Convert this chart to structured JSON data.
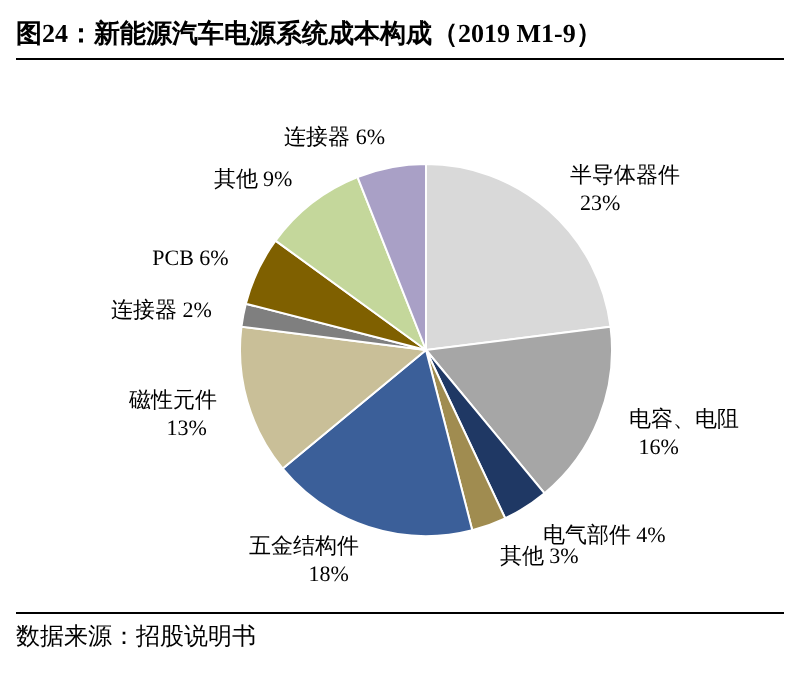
{
  "chart_data": {
    "type": "pie",
    "title": "图24：新能源汽车电源系统成本构成（2019 M1-9）",
    "categories": [
      "半导体器件",
      "电容、电阻",
      "电气部件",
      "其他",
      "五金结构件",
      "磁性元件",
      "连接器",
      "PCB",
      "其他",
      "连接器"
    ],
    "values": [
      23,
      16,
      4,
      3,
      18,
      13,
      2,
      6,
      9,
      6
    ],
    "value_labels": [
      "23%",
      "16%",
      "4%",
      "3%",
      "18%",
      "13%",
      "2%",
      "6%",
      "9%",
      "6%"
    ],
    "colors": [
      "#d9d9d9",
      "#a6a6a6",
      "#1f3864",
      "#a08c50",
      "#3b5f99",
      "#c9bf98",
      "#7f7f7f",
      "#7f6000",
      "#c4d79b",
      "#a9a0c6"
    ],
    "annotations": [
      "数据来源：招股说明书"
    ]
  }
}
